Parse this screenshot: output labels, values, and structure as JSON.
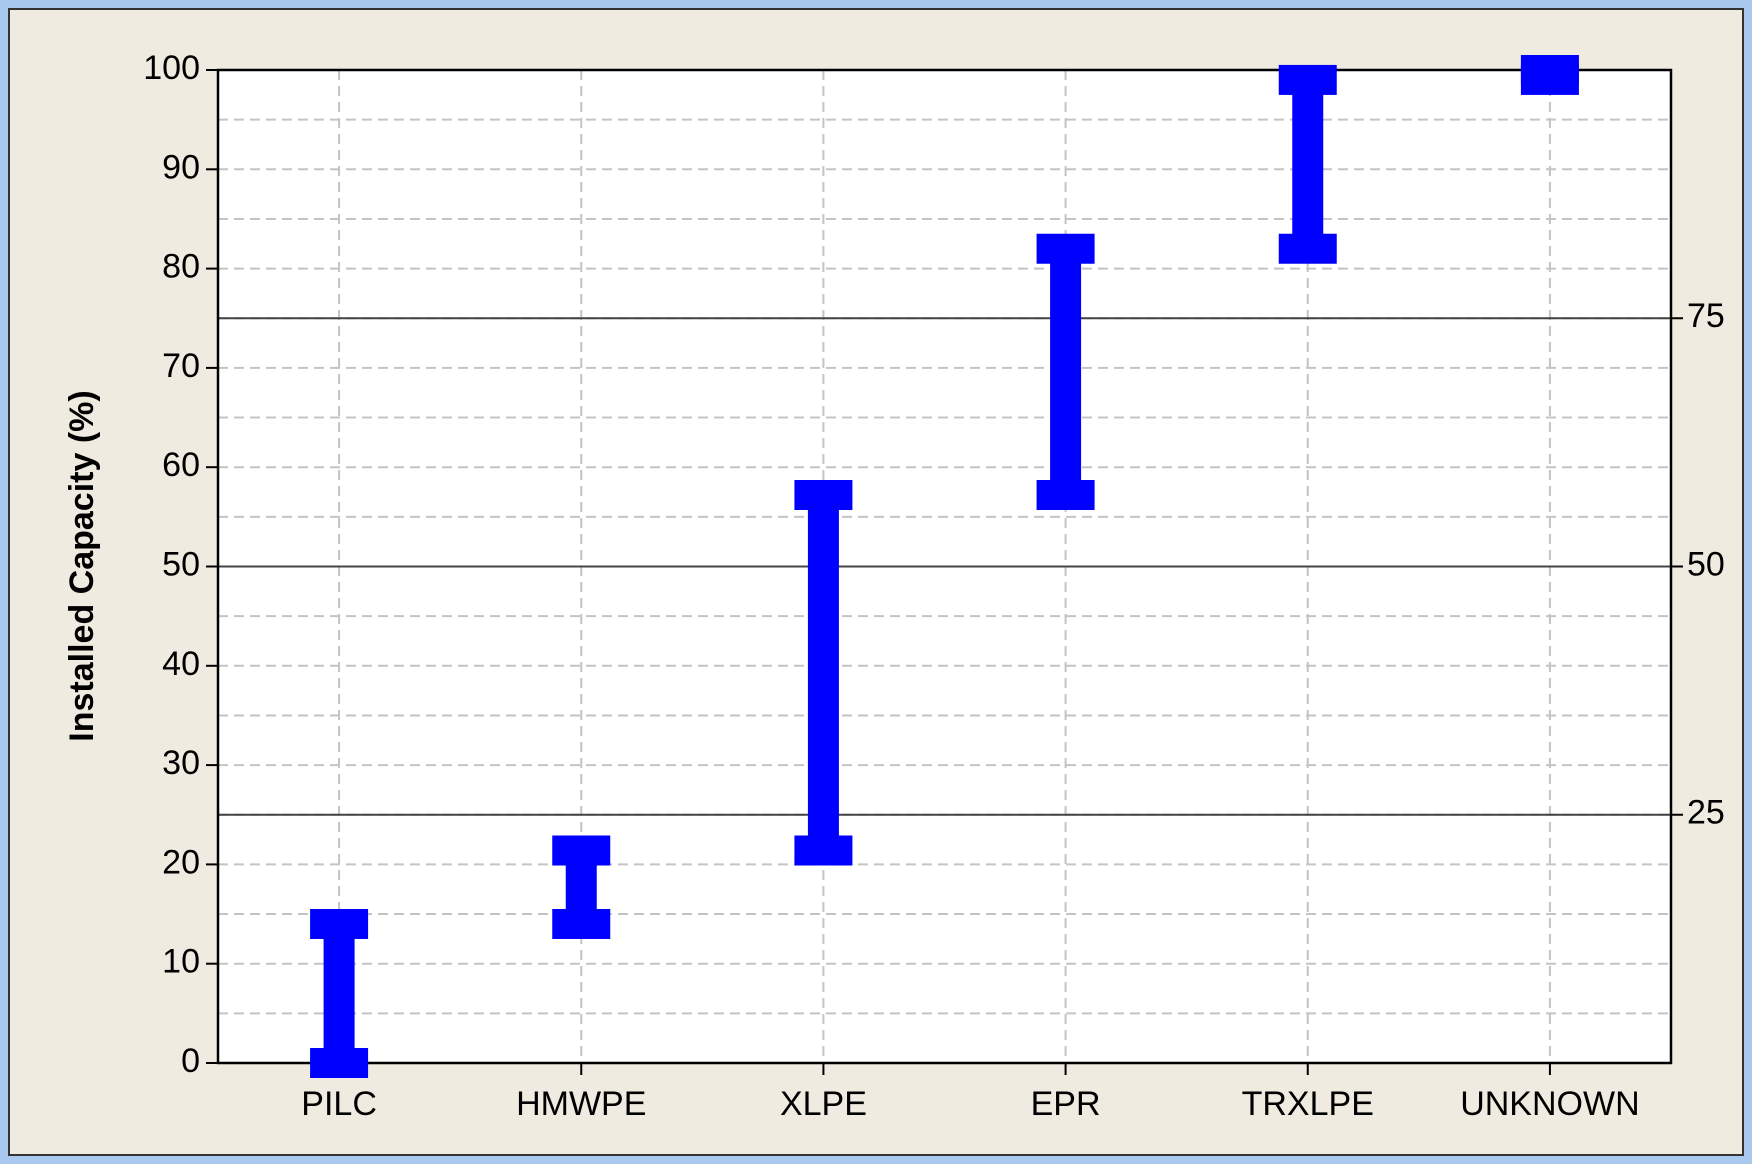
{
  "chart_data": {
    "type": "range_bar",
    "y_label": "Installed Capacity (%)",
    "categories": [
      "PILC",
      "HMWPE",
      "XLPE",
      "EPR",
      "TRXLPE",
      "UNKNOWN"
    ],
    "low": [
      0,
      14,
      21.4,
      57.2,
      82,
      99
    ],
    "high": [
      14,
      21.4,
      57.2,
      82,
      99,
      100
    ],
    "color": "#0000ff",
    "ylim": [
      0,
      100
    ],
    "yticks": [
      0,
      10,
      20,
      30,
      40,
      50,
      60,
      70,
      80,
      90,
      100
    ],
    "y_minor_ticks": [
      5,
      15,
      25,
      35,
      45,
      55,
      65,
      75,
      85,
      95
    ],
    "y2lim": [
      0,
      100
    ],
    "y2ticks": [
      25,
      50,
      75
    ],
    "grid": true
  }
}
